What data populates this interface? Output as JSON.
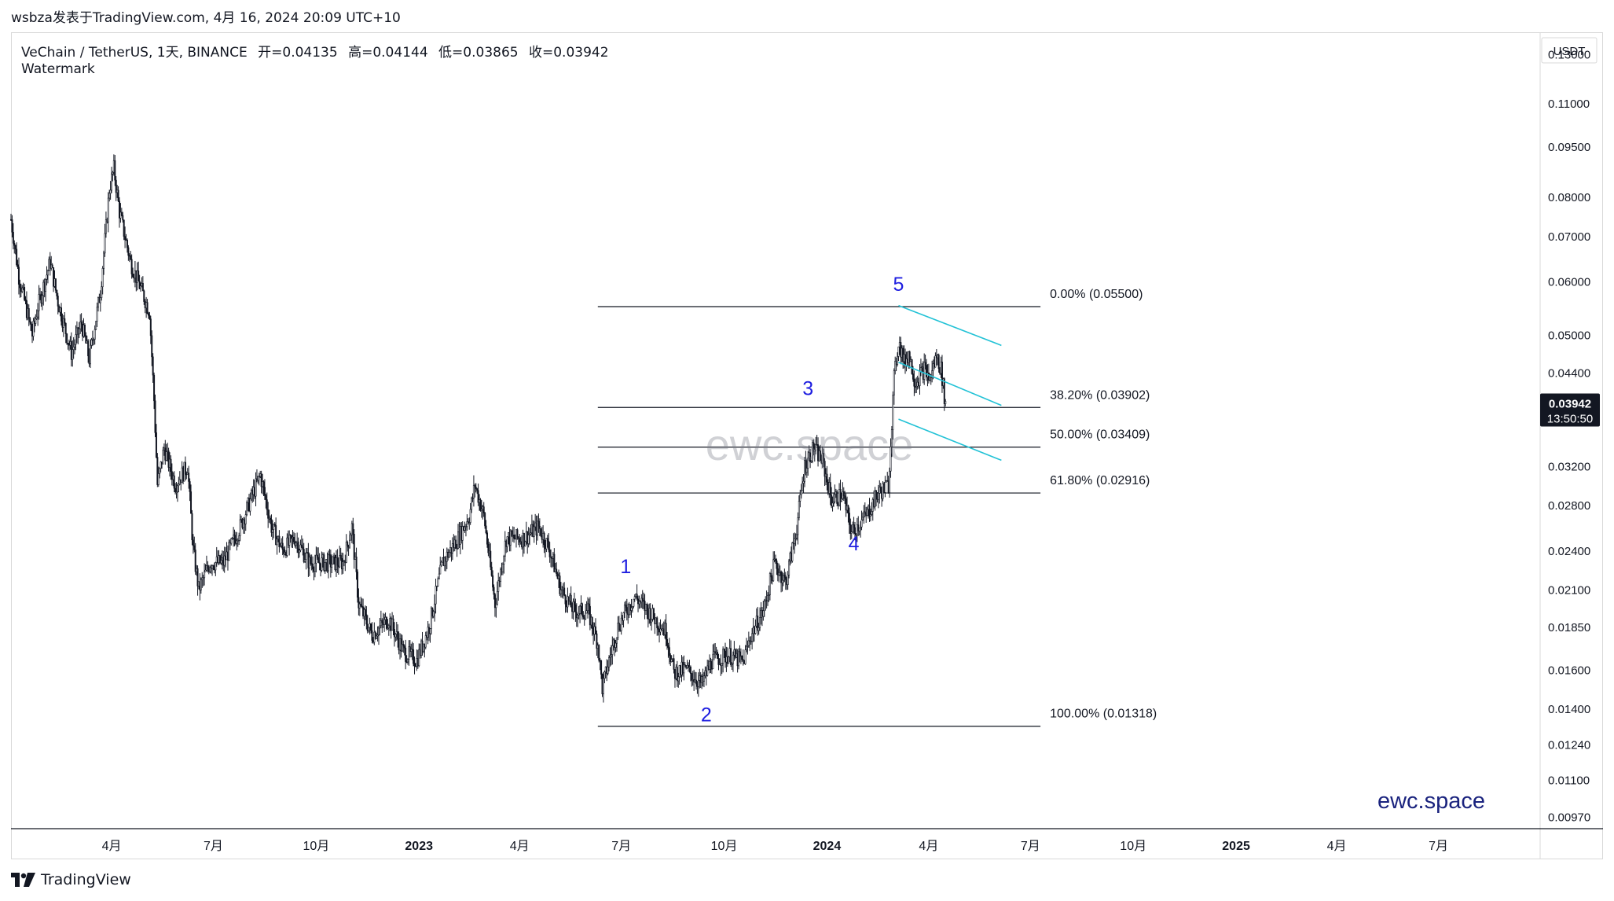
{
  "header": {
    "attribution": "wsbza发表于TradingView.com, 4月 16, 2024 20:09 UTC+10"
  },
  "legend": {
    "symbol": "VeChain / TetherUS, 1天, BINANCE",
    "open": "开=0.04135",
    "high": "高=0.04144",
    "low": "低=0.03865",
    "close": "收=0.03942",
    "study": "Watermark"
  },
  "currency_label": "USDT",
  "price_badge": {
    "price": "0.03942",
    "countdown": "13:50:50",
    "color": "#131722"
  },
  "watermarks": {
    "center": "ewc.space",
    "corner": "ewc.space"
  },
  "footer": {
    "brand": "TradingView",
    "logo_icon": "tradingview-logo-icon"
  },
  "colors": {
    "candle": "#131722",
    "fib_line": "#131722",
    "channel": "#22c2d6",
    "wave_label": "#1e1ee0",
    "corner_watermark": "#1a237e"
  },
  "chart_data": {
    "type": "candlestick",
    "title": "VeChain / TetherUS, 1天, BINANCE",
    "ylabel": "USDT",
    "y_scale": "log",
    "ylim": [
      0.0093,
      0.14
    ],
    "xlim": [
      "2022-01-01",
      "2025-09-30"
    ],
    "y_ticks": [
      "0.13000",
      "0.11000",
      "0.09500",
      "0.08000",
      "0.07000",
      "0.06000",
      "0.05000",
      "0.04400",
      "0.03200",
      "0.02800",
      "0.02400",
      "0.02100",
      "0.01850",
      "0.01600",
      "0.01400",
      "0.01240",
      "0.01100",
      "0.00970"
    ],
    "x_ticks": [
      {
        "label": "4月",
        "date": "2022-04-01",
        "bold": false
      },
      {
        "label": "7月",
        "date": "2022-07-01",
        "bold": false
      },
      {
        "label": "10月",
        "date": "2022-10-01",
        "bold": false
      },
      {
        "label": "2023",
        "date": "2023-01-01",
        "bold": true
      },
      {
        "label": "4月",
        "date": "2023-04-01",
        "bold": false
      },
      {
        "label": "7月",
        "date": "2023-07-01",
        "bold": false
      },
      {
        "label": "10月",
        "date": "2023-10-01",
        "bold": false
      },
      {
        "label": "2024",
        "date": "2024-01-01",
        "bold": true
      },
      {
        "label": "4月",
        "date": "2024-04-01",
        "bold": false
      },
      {
        "label": "7月",
        "date": "2024-07-01",
        "bold": false
      },
      {
        "label": "10月",
        "date": "2024-10-01",
        "bold": false
      },
      {
        "label": "2025",
        "date": "2025-01-01",
        "bold": true
      },
      {
        "label": "4月",
        "date": "2025-04-01",
        "bold": false
      },
      {
        "label": "7月",
        "date": "2025-07-01",
        "bold": false
      }
    ],
    "price_path": [
      [
        "2022-01-01",
        0.074
      ],
      [
        "2022-01-08",
        0.061
      ],
      [
        "2022-01-20",
        0.05
      ],
      [
        "2022-01-25",
        0.055
      ],
      [
        "2022-02-05",
        0.064
      ],
      [
        "2022-02-12",
        0.056
      ],
      [
        "2022-02-24",
        0.047
      ],
      [
        "2022-03-05",
        0.052
      ],
      [
        "2022-03-12",
        0.046
      ],
      [
        "2022-03-22",
        0.058
      ],
      [
        "2022-03-30",
        0.082
      ],
      [
        "2022-04-03",
        0.088
      ],
      [
        "2022-04-08",
        0.076
      ],
      [
        "2022-04-18",
        0.064
      ],
      [
        "2022-04-28",
        0.058
      ],
      [
        "2022-05-05",
        0.054
      ],
      [
        "2022-05-09",
        0.04
      ],
      [
        "2022-05-12",
        0.03
      ],
      [
        "2022-05-18",
        0.034
      ],
      [
        "2022-05-28",
        0.03
      ],
      [
        "2022-06-08",
        0.032
      ],
      [
        "2022-06-13",
        0.024
      ],
      [
        "2022-06-18",
        0.021
      ],
      [
        "2022-06-28",
        0.023
      ],
      [
        "2022-07-10",
        0.023
      ],
      [
        "2022-07-25",
        0.026
      ],
      [
        "2022-08-05",
        0.029
      ],
      [
        "2022-08-12",
        0.031
      ],
      [
        "2022-08-22",
        0.026
      ],
      [
        "2022-09-01",
        0.024
      ],
      [
        "2022-09-12",
        0.025
      ],
      [
        "2022-09-25",
        0.023
      ],
      [
        "2022-10-10",
        0.023
      ],
      [
        "2022-10-25",
        0.023
      ],
      [
        "2022-11-02",
        0.026
      ],
      [
        "2022-11-08",
        0.02
      ],
      [
        "2022-11-20",
        0.018
      ],
      [
        "2022-12-05",
        0.019
      ],
      [
        "2022-12-18",
        0.017
      ],
      [
        "2022-12-30",
        0.0165
      ],
      [
        "2023-01-10",
        0.0185
      ],
      [
        "2023-01-22",
        0.023
      ],
      [
        "2023-02-05",
        0.025
      ],
      [
        "2023-02-15",
        0.027
      ],
      [
        "2023-02-20",
        0.03
      ],
      [
        "2023-02-28",
        0.027
      ],
      [
        "2023-03-10",
        0.02
      ],
      [
        "2023-03-20",
        0.025
      ],
      [
        "2023-04-05",
        0.025
      ],
      [
        "2023-04-18",
        0.026
      ],
      [
        "2023-04-28",
        0.024
      ],
      [
        "2023-05-08",
        0.021
      ],
      [
        "2023-05-20",
        0.0195
      ],
      [
        "2023-06-01",
        0.0195
      ],
      [
        "2023-06-10",
        0.0175
      ],
      [
        "2023-06-14",
        0.015
      ],
      [
        "2023-06-20",
        0.0165
      ],
      [
        "2023-06-28",
        0.0185
      ],
      [
        "2023-07-05",
        0.0195
      ],
      [
        "2023-07-13",
        0.0205
      ],
      [
        "2023-07-25",
        0.0195
      ],
      [
        "2023-08-10",
        0.0182
      ],
      [
        "2023-08-17",
        0.0158
      ],
      [
        "2023-08-28",
        0.016
      ],
      [
        "2023-09-11",
        0.0152
      ],
      [
        "2023-09-20",
        0.0165
      ],
      [
        "2023-10-05",
        0.0168
      ],
      [
        "2023-10-18",
        0.0164
      ],
      [
        "2023-10-25",
        0.018
      ],
      [
        "2023-11-05",
        0.0195
      ],
      [
        "2023-11-15",
        0.023
      ],
      [
        "2023-11-25",
        0.0215
      ],
      [
        "2023-12-05",
        0.026
      ],
      [
        "2023-12-12",
        0.032
      ],
      [
        "2023-12-20",
        0.034
      ],
      [
        "2023-12-28",
        0.0325
      ],
      [
        "2024-01-05",
        0.0285
      ],
      [
        "2024-01-15",
        0.029
      ],
      [
        "2024-01-23",
        0.0255
      ],
      [
        "2024-02-05",
        0.027
      ],
      [
        "2024-02-15",
        0.029
      ],
      [
        "2024-02-25",
        0.03
      ],
      [
        "2024-03-01",
        0.043
      ],
      [
        "2024-03-05",
        0.049
      ],
      [
        "2024-03-10",
        0.0455
      ],
      [
        "2024-03-14",
        0.047
      ],
      [
        "2024-03-20",
        0.0425
      ],
      [
        "2024-03-28",
        0.0445
      ],
      [
        "2024-04-02",
        0.043
      ],
      [
        "2024-04-08",
        0.0465
      ],
      [
        "2024-04-12",
        0.0445
      ],
      [
        "2024-04-16",
        0.0394
      ]
    ],
    "fibonacci": [
      {
        "label": "0.00% (0.05500)",
        "value": 0.055
      },
      {
        "label": "38.20% (0.03902)",
        "value": 0.03902
      },
      {
        "label": "50.00% (0.03409)",
        "value": 0.03409
      },
      {
        "label": "61.80% (0.02916)",
        "value": 0.02916
      },
      {
        "label": "100.00% (0.01318)",
        "value": 0.01318
      }
    ],
    "fib_range": {
      "start": "2023-06-10",
      "end": "2024-07-10"
    },
    "waves": [
      {
        "label": "1",
        "date": "2023-07-05",
        "price": 0.0222
      },
      {
        "label": "2",
        "date": "2023-09-15",
        "price": 0.0134
      },
      {
        "label": "3",
        "date": "2023-12-15",
        "price": 0.0407
      },
      {
        "label": "4",
        "date": "2024-01-25",
        "price": 0.024
      },
      {
        "label": "5",
        "date": "2024-03-05",
        "price": 0.058
      }
    ],
    "channel": [
      {
        "from": [
          "2024-03-05",
          0.0552
        ],
        "to": [
          "2024-06-05",
          0.0482
        ]
      },
      {
        "from": [
          "2024-03-05",
          0.0455
        ],
        "to": [
          "2024-06-05",
          0.0393
        ]
      },
      {
        "from": [
          "2024-03-05",
          0.0375
        ],
        "to": [
          "2024-06-05",
          0.0326
        ]
      }
    ],
    "last_price": 0.03942
  }
}
